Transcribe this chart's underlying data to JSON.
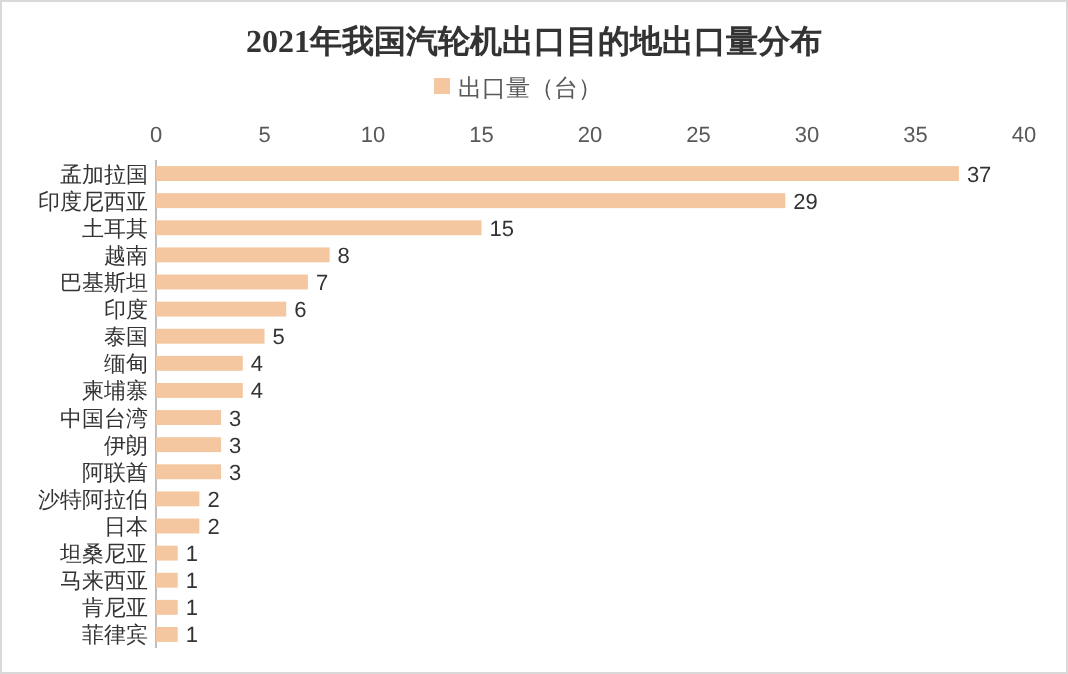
{
  "chart_data": {
    "type": "bar",
    "orientation": "horizontal",
    "title": "2021年我国汽轮机出口目的地出口量分布",
    "categories": [
      "孟加拉国",
      "印度尼西亚",
      "土耳其",
      "越南",
      "巴基斯坦",
      "印度",
      "泰国",
      "缅甸",
      "柬埔寨",
      "中国台湾",
      "伊朗",
      "阿联酋",
      "沙特阿拉伯",
      "日本",
      "坦桑尼亚",
      "马来西亚",
      "肯尼亚",
      "菲律宾"
    ],
    "series": [
      {
        "name": "出口量（台）",
        "color": "#f4c7a0",
        "values": [
          37,
          29,
          15,
          8,
          7,
          6,
          5,
          4,
          4,
          3,
          3,
          3,
          2,
          2,
          1,
          1,
          1,
          1
        ]
      }
    ],
    "xlim": [
      0,
      40
    ],
    "xticks": [
      0,
      5,
      10,
      15,
      20,
      25,
      30,
      35,
      40
    ],
    "data_labels": true,
    "legend": "top",
    "grid": false
  }
}
